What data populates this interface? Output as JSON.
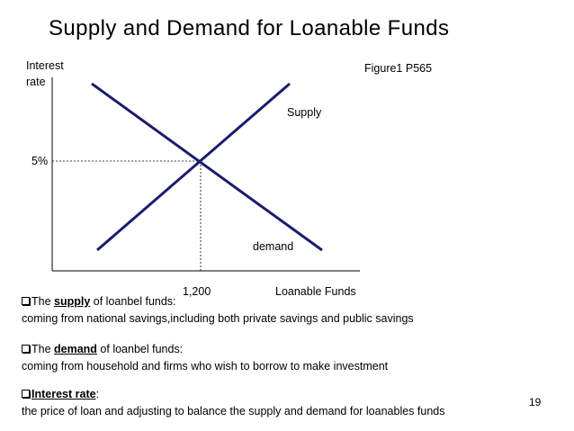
{
  "slide": {
    "title": "Supply and Demand for Loanable Funds",
    "figure_ref": "Figure1 P565",
    "page_number": "19"
  },
  "diagram": {
    "y_axis_label_line1": "Interest",
    "y_axis_label_line2": "rate",
    "x_axis_label": "Loanable Funds",
    "equilibrium_rate_label": "5%",
    "equilibrium_quantity_label": "1,200",
    "supply_label": "Supply",
    "demand_label": "demand",
    "line_color": "#1a1a6e"
  },
  "notes": [
    {
      "prefix": "The ",
      "keyword": "supply",
      "suffix": " of loanbel funds:",
      "detail": "coming from national savings,including both private savings and public savings"
    },
    {
      "prefix": "The ",
      "keyword": "demand",
      "suffix": " of loanbel funds:",
      "detail": "coming from household and firms who wish to borrow to make investment"
    },
    {
      "prefix": "",
      "keyword": "Interest rate",
      "suffix": ":",
      "detail": "the price of loan and adjusting to balance the supply and demand for loanables funds"
    }
  ]
}
